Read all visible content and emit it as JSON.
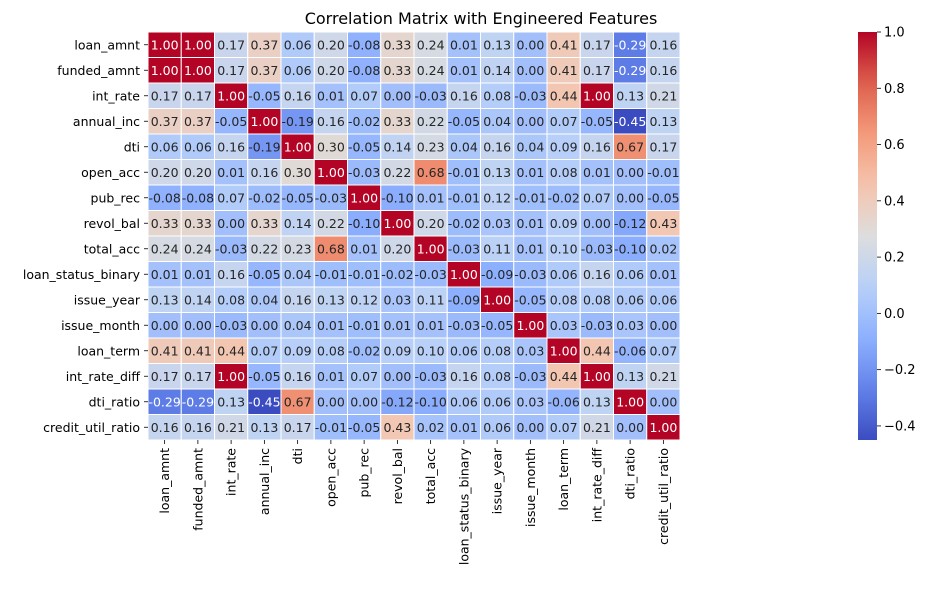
{
  "chart_data": {
    "type": "heatmap",
    "title": "Correlation Matrix with Engineered Features",
    "xlabel": "",
    "ylabel": "",
    "labels": [
      "loan_amnt",
      "funded_amnt",
      "int_rate",
      "annual_inc",
      "dti",
      "open_acc",
      "pub_rec",
      "revol_bal",
      "total_acc",
      "loan_status_binary",
      "issue_year",
      "issue_month",
      "loan_term",
      "int_rate_diff",
      "dti_ratio",
      "credit_util_ratio"
    ],
    "values": [
      [
        1.0,
        1.0,
        0.17,
        0.37,
        0.06,
        0.2,
        -0.08,
        0.33,
        0.24,
        0.01,
        0.13,
        -0.0,
        0.41,
        0.17,
        -0.29,
        0.16
      ],
      [
        1.0,
        1.0,
        0.17,
        0.37,
        0.06,
        0.2,
        -0.08,
        0.33,
        0.24,
        0.01,
        0.14,
        -0.0,
        0.41,
        0.17,
        -0.29,
        0.16
      ],
      [
        0.17,
        0.17,
        1.0,
        -0.05,
        0.16,
        0.01,
        0.07,
        -0.0,
        -0.03,
        0.16,
        0.08,
        -0.03,
        0.44,
        1.0,
        0.13,
        0.21
      ],
      [
        0.37,
        0.37,
        -0.05,
        1.0,
        -0.19,
        0.16,
        -0.02,
        0.33,
        0.22,
        -0.05,
        0.04,
        -0.0,
        0.07,
        -0.05,
        -0.45,
        0.13
      ],
      [
        0.06,
        0.06,
        0.16,
        -0.19,
        1.0,
        0.3,
        -0.05,
        0.14,
        0.23,
        0.04,
        0.16,
        0.04,
        0.09,
        0.16,
        0.67,
        0.17
      ],
      [
        0.2,
        0.2,
        0.01,
        0.16,
        0.3,
        1.0,
        -0.03,
        0.22,
        0.68,
        -0.01,
        0.13,
        0.01,
        0.08,
        0.01,
        -0.0,
        -0.01
      ],
      [
        -0.08,
        -0.08,
        0.07,
        -0.02,
        -0.05,
        -0.03,
        1.0,
        -0.1,
        0.01,
        -0.01,
        0.12,
        -0.01,
        -0.02,
        0.07,
        0.0,
        -0.05
      ],
      [
        0.33,
        0.33,
        -0.0,
        0.33,
        0.14,
        0.22,
        -0.1,
        1.0,
        0.2,
        -0.02,
        0.03,
        0.01,
        0.09,
        -0.0,
        -0.12,
        0.43
      ],
      [
        0.24,
        0.24,
        -0.03,
        0.22,
        0.23,
        0.68,
        0.01,
        0.2,
        1.0,
        -0.03,
        0.11,
        0.01,
        0.1,
        -0.03,
        -0.1,
        0.02
      ],
      [
        0.01,
        0.01,
        0.16,
        -0.05,
        0.04,
        -0.01,
        -0.01,
        -0.02,
        -0.03,
        1.0,
        -0.09,
        -0.03,
        0.06,
        0.16,
        0.06,
        0.01
      ],
      [
        0.13,
        0.14,
        0.08,
        0.04,
        0.16,
        0.13,
        0.12,
        0.03,
        0.11,
        -0.09,
        1.0,
        -0.05,
        0.08,
        0.08,
        0.06,
        0.06
      ],
      [
        -0.0,
        -0.0,
        -0.03,
        -0.0,
        0.04,
        0.01,
        -0.01,
        0.01,
        0.01,
        -0.03,
        -0.05,
        1.0,
        0.03,
        -0.03,
        0.03,
        0.0
      ],
      [
        0.41,
        0.41,
        0.44,
        0.07,
        0.09,
        0.08,
        -0.02,
        0.09,
        0.1,
        0.06,
        0.08,
        0.03,
        1.0,
        0.44,
        -0.06,
        0.07
      ],
      [
        0.17,
        0.17,
        1.0,
        -0.05,
        0.16,
        0.01,
        0.07,
        -0.0,
        -0.03,
        0.16,
        0.08,
        -0.03,
        0.44,
        1.0,
        0.13,
        0.21
      ],
      [
        -0.29,
        -0.29,
        0.13,
        -0.45,
        0.67,
        -0.0,
        0.0,
        -0.12,
        -0.1,
        0.06,
        0.06,
        0.03,
        -0.06,
        0.13,
        1.0,
        -0.0
      ],
      [
        0.16,
        0.16,
        0.21,
        0.13,
        0.17,
        -0.01,
        -0.05,
        0.43,
        0.02,
        0.01,
        0.06,
        0.0,
        0.07,
        0.21,
        -0.0,
        1.0
      ]
    ],
    "colormap": "coolwarm",
    "vmin": -0.45,
    "vmax": 1.0,
    "colorbar_ticks": [
      1.0,
      0.8,
      0.6,
      0.4,
      0.2,
      0.0,
      -0.2,
      -0.4
    ],
    "colorbar_tick_labels": [
      "1.0",
      "0.8",
      "0.6",
      "0.4",
      "0.2",
      "0.0",
      "−0.2",
      "−0.4"
    ],
    "annotations": true,
    "number_format": "0.00",
    "cell_border": "#ffffff",
    "grid": false,
    "legend": "colorbar-right"
  }
}
